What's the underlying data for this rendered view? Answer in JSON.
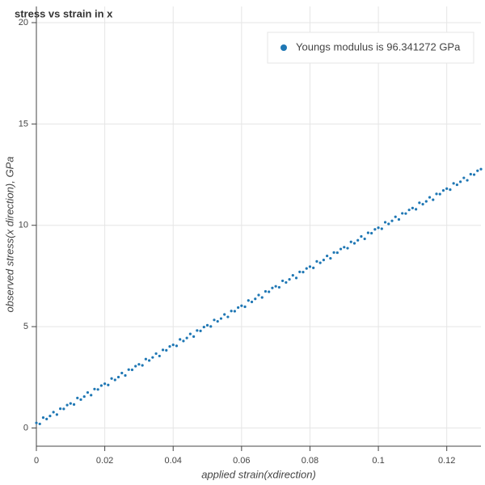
{
  "chart_data": {
    "type": "scatter",
    "title": "stress vs strain in x",
    "xlabel": "applied strain(xdirection)",
    "ylabel": "observed stress(x direction), GPa",
    "xlim": [
      0,
      0.13
    ],
    "ylim": [
      -0.9,
      20
    ],
    "xticks": [
      0,
      0.02,
      0.04,
      0.06,
      0.08,
      0.1,
      0.12
    ],
    "yticks": [
      0,
      5,
      10,
      15,
      20
    ],
    "grid": true,
    "legend": "top_right",
    "series": [
      {
        "name": "Youngs modulus is 96.341272 GPa",
        "color": "#1f77b4",
        "x": [
          0,
          0.001,
          0.002,
          0.003,
          0.004,
          0.005,
          0.006,
          0.007,
          0.008,
          0.009,
          0.01,
          0.011,
          0.012,
          0.013,
          0.014,
          0.015,
          0.016,
          0.017,
          0.018,
          0.019,
          0.02,
          0.021,
          0.022,
          0.023,
          0.024,
          0.025,
          0.026,
          0.027,
          0.028,
          0.029,
          0.03,
          0.031,
          0.032,
          0.033,
          0.034,
          0.035,
          0.036,
          0.037,
          0.038,
          0.039,
          0.04,
          0.041,
          0.042,
          0.043,
          0.044,
          0.045,
          0.046,
          0.047,
          0.048,
          0.049,
          0.05,
          0.051,
          0.052,
          0.053,
          0.054,
          0.055,
          0.056,
          0.057,
          0.058,
          0.059,
          0.06,
          0.061,
          0.062,
          0.063,
          0.064,
          0.065,
          0.066,
          0.067,
          0.068,
          0.069,
          0.07,
          0.071,
          0.072,
          0.073,
          0.074,
          0.075,
          0.076,
          0.077,
          0.078,
          0.079,
          0.08,
          0.081,
          0.082,
          0.083,
          0.084,
          0.085,
          0.086,
          0.087,
          0.088,
          0.089,
          0.09,
          0.091,
          0.092,
          0.093,
          0.094,
          0.095,
          0.096,
          0.097,
          0.098,
          0.099,
          0.1,
          0.101,
          0.102,
          0.103,
          0.104,
          0.105,
          0.106,
          0.107,
          0.108,
          0.109,
          0.11,
          0.111,
          0.112,
          0.113,
          0.114,
          0.115,
          0.116,
          0.117,
          0.118,
          0.119,
          0.12,
          0.121,
          0.122,
          0.123,
          0.124,
          0.125,
          0.126,
          0.127,
          0.128,
          0.129,
          0.13
        ],
        "values": [
          0.25,
          0.2,
          0.51,
          0.44,
          0.59,
          0.78,
          0.66,
          0.95,
          0.94,
          1.13,
          1.21,
          1.16,
          1.48,
          1.4,
          1.55,
          1.75,
          1.62,
          1.92,
          1.9,
          2.09,
          2.18,
          2.12,
          2.44,
          2.37,
          2.51,
          2.71,
          2.59,
          2.88,
          2.87,
          3.05,
          3.14,
          3.09,
          3.4,
          3.33,
          3.48,
          3.67,
          3.55,
          3.85,
          3.83,
          4.02,
          4.1,
          4.05,
          4.37,
          4.29,
          4.44,
          4.64,
          4.51,
          4.81,
          4.79,
          4.98,
          5.07,
          5.01,
          5.33,
          5.26,
          5.4,
          5.6,
          5.48,
          5.77,
          5.76,
          5.94,
          6.03,
          5.98,
          6.29,
          6.22,
          6.37,
          6.56,
          6.44,
          6.74,
          6.72,
          6.91,
          6.99,
          6.94,
          7.26,
          7.18,
          7.33,
          7.53,
          7.4,
          7.7,
          7.69,
          7.87,
          7.96,
          7.9,
          8.22,
          8.15,
          8.29,
          8.49,
          8.37,
          8.66,
          8.65,
          8.83,
          8.92,
          8.87,
          9.18,
          9.11,
          9.26,
          9.45,
          9.33,
          9.63,
          9.61,
          9.8,
          9.88,
          9.83,
          10.15,
          10.07,
          10.22,
          10.42,
          10.29,
          10.59,
          10.58,
          10.76,
          10.85,
          10.79,
          11.11,
          11.04,
          11.18,
          11.38,
          11.26,
          11.55,
          11.54,
          11.72,
          11.81,
          11.76,
          12.07,
          12.0,
          12.15,
          12.34,
          12.22,
          12.52,
          12.5,
          12.69,
          12.77
        ]
      }
    ]
  }
}
